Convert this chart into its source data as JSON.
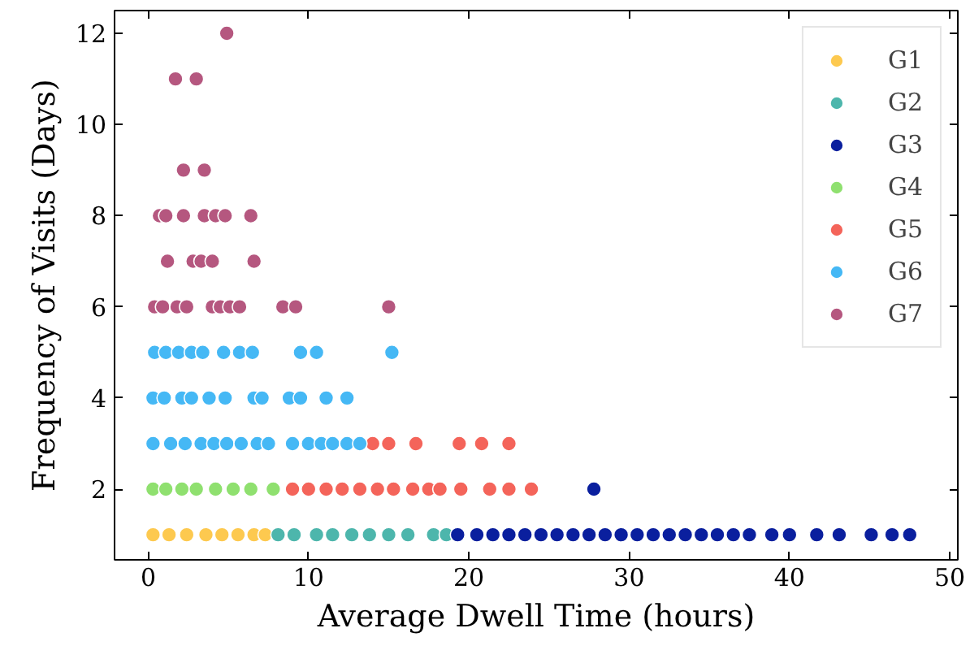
{
  "chart_data": {
    "type": "scatter",
    "xlabel": "Average Dwell Time (hours)",
    "ylabel": "Frequency of Visits (Days)",
    "xlim": [
      -2.1,
      50.5
    ],
    "ylim": [
      0.45,
      12.5
    ],
    "xticks": [
      0,
      10,
      20,
      30,
      40,
      50
    ],
    "yticks": [
      2,
      4,
      6,
      8,
      10,
      12
    ],
    "grid": false,
    "legend": "top right",
    "marker": "circle",
    "series": [
      {
        "name": "G1",
        "color": "#fdc94f",
        "x": [
          0.3,
          1.3,
          2.4,
          3.6,
          4.6,
          5.6,
          6.6,
          7.3
        ],
        "values": [
          1,
          1,
          1,
          1,
          1,
          1,
          1,
          1
        ]
      },
      {
        "name": "G2",
        "color": "#4db6ac",
        "x": [
          8.1,
          9.1,
          10.5,
          11.5,
          12.7,
          13.8,
          15.0,
          16.2,
          17.8,
          18.6
        ],
        "values": [
          1,
          1,
          1,
          1,
          1,
          1,
          1,
          1,
          1,
          1
        ]
      },
      {
        "name": "G3",
        "color": "#0a1f9e",
        "x": [
          19.3,
          20.5,
          21.5,
          22.5,
          23.5,
          24.5,
          25.5,
          26.5,
          27.5,
          28.5,
          29.5,
          30.5,
          31.5,
          32.5,
          33.5,
          34.5,
          35.5,
          36.5,
          37.5,
          38.9,
          40.0,
          41.7,
          43.1,
          45.1,
          46.4,
          47.5,
          27.8
        ],
        "values": [
          1,
          1,
          1,
          1,
          1,
          1,
          1,
          1,
          1,
          1,
          1,
          1,
          1,
          1,
          1,
          1,
          1,
          1,
          1,
          1,
          1,
          1,
          1,
          1,
          1,
          1,
          2
        ]
      },
      {
        "name": "G4",
        "color": "#8fe06f",
        "x": [
          0.3,
          1.1,
          2.1,
          3.0,
          4.2,
          5.3,
          6.4,
          7.8
        ],
        "values": [
          2,
          2,
          2,
          2,
          2,
          2,
          2,
          2
        ]
      },
      {
        "name": "G5",
        "color": "#f4645a",
        "x": [
          9.0,
          10.0,
          11.1,
          12.1,
          13.2,
          14.3,
          15.3,
          16.5,
          17.5,
          18.2,
          19.5,
          21.3,
          22.5,
          23.9,
          14.0,
          15.0,
          16.7,
          19.4,
          20.8,
          22.5
        ],
        "values": [
          2,
          2,
          2,
          2,
          2,
          2,
          2,
          2,
          2,
          2,
          2,
          2,
          2,
          2,
          3,
          3,
          3,
          3,
          3,
          3
        ]
      },
      {
        "name": "G6",
        "color": "#45b8f5",
        "x": [
          0.3,
          1.4,
          2.3,
          3.3,
          4.1,
          4.9,
          5.8,
          6.8,
          7.5,
          9.0,
          10.0,
          10.8,
          11.5,
          12.4,
          13.2,
          0.3,
          1.0,
          2.1,
          2.7,
          3.8,
          4.8,
          6.6,
          7.1,
          8.8,
          9.5,
          11.1,
          12.4,
          0.4,
          1.1,
          1.9,
          2.7,
          3.4,
          4.7,
          5.7,
          6.5,
          9.5,
          10.5,
          15.2
        ],
        "values": [
          3,
          3,
          3,
          3,
          3,
          3,
          3,
          3,
          3,
          3,
          3,
          3,
          3,
          3,
          3,
          4,
          4,
          4,
          4,
          4,
          4,
          4,
          4,
          4,
          4,
          4,
          4,
          5,
          5,
          5,
          5,
          5,
          5,
          5,
          5,
          5,
          5,
          5
        ]
      },
      {
        "name": "G7",
        "color": "#b5577f",
        "x": [
          0.4,
          0.9,
          1.8,
          2.4,
          4.0,
          4.5,
          5.1,
          5.7,
          8.4,
          9.2,
          15.0,
          1.2,
          2.8,
          3.3,
          4.0,
          6.6,
          0.7,
          1.1,
          2.2,
          3.5,
          4.2,
          4.8,
          6.4,
          2.2,
          3.5,
          1.7,
          3.0,
          4.9
        ],
        "values": [
          6,
          6,
          6,
          6,
          6,
          6,
          6,
          6,
          6,
          6,
          6,
          7,
          7,
          7,
          7,
          7,
          8,
          8,
          8,
          8,
          8,
          8,
          8,
          9,
          9,
          11,
          11,
          12
        ]
      }
    ]
  }
}
